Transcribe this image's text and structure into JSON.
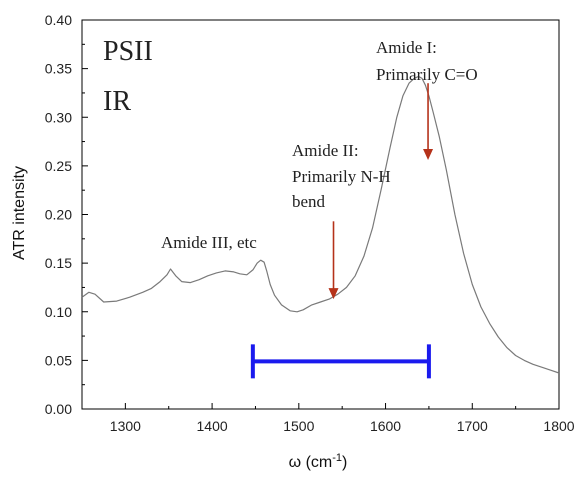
{
  "chart_data": {
    "type": "line",
    "title": "",
    "xlabel": "ω (cm",
    "xlabel_sup": "-1",
    "xlabel_close": ")",
    "ylabel": "ATR intensity",
    "xlim": [
      1250,
      1800
    ],
    "ylim": [
      0.0,
      0.4
    ],
    "xticks": [
      "1300",
      "1400",
      "1500",
      "1600",
      "1700",
      "1800"
    ],
    "yticks": [
      "0.00",
      "0.05",
      "0.10",
      "0.15",
      "0.20",
      "0.25",
      "0.30",
      "0.35",
      "0.40"
    ],
    "series": [
      {
        "color": "#7a7a7a",
        "x": [
          1250,
          1258,
          1265,
          1275,
          1290,
          1305,
          1320,
          1330,
          1340,
          1348,
          1352,
          1358,
          1365,
          1375,
          1385,
          1395,
          1405,
          1415,
          1425,
          1432,
          1440,
          1447,
          1452,
          1456,
          1460,
          1463,
          1467,
          1472,
          1480,
          1490,
          1498,
          1505,
          1515,
          1525,
          1535,
          1545,
          1555,
          1565,
          1575,
          1585,
          1595,
          1605,
          1613,
          1620,
          1627,
          1633,
          1638,
          1642,
          1646,
          1650,
          1655,
          1662,
          1670,
          1680,
          1690,
          1700,
          1710,
          1720,
          1730,
          1740,
          1750,
          1760,
          1770,
          1780,
          1790,
          1800
        ],
        "y": [
          0.115,
          0.12,
          0.118,
          0.11,
          0.111,
          0.115,
          0.12,
          0.124,
          0.131,
          0.138,
          0.144,
          0.137,
          0.131,
          0.13,
          0.133,
          0.137,
          0.14,
          0.142,
          0.141,
          0.139,
          0.138,
          0.143,
          0.15,
          0.153,
          0.151,
          0.142,
          0.128,
          0.117,
          0.107,
          0.101,
          0.1,
          0.102,
          0.107,
          0.11,
          0.113,
          0.118,
          0.125,
          0.137,
          0.157,
          0.186,
          0.226,
          0.268,
          0.3,
          0.322,
          0.335,
          0.34,
          0.342,
          0.34,
          0.333,
          0.322,
          0.305,
          0.28,
          0.246,
          0.2,
          0.16,
          0.128,
          0.105,
          0.088,
          0.074,
          0.063,
          0.055,
          0.05,
          0.046,
          0.043,
          0.04,
          0.037
        ]
      }
    ],
    "annotations": [
      {
        "lines": [
          "PSII",
          "IR"
        ]
      },
      {
        "lines": [
          "Amide I:",
          "Primarily C=O"
        ],
        "arrow_tail": [
          1649,
          0.335
        ],
        "arrow_head": [
          1649,
          0.256
        ],
        "arrow_color": "#b5321a"
      },
      {
        "lines": [
          "Amide II:",
          "Primarily N-H",
          "bend"
        ],
        "arrow_tail": [
          1540,
          0.193
        ],
        "arrow_head": [
          1540,
          0.113
        ],
        "arrow_color": "#b5321a"
      },
      {
        "lines": [
          "Amide III, etc"
        ]
      }
    ],
    "range_bar": {
      "x_start": 1447,
      "x_end": 1650,
      "y": 0.049,
      "color": "#1a1aee"
    },
    "grid": false
  }
}
